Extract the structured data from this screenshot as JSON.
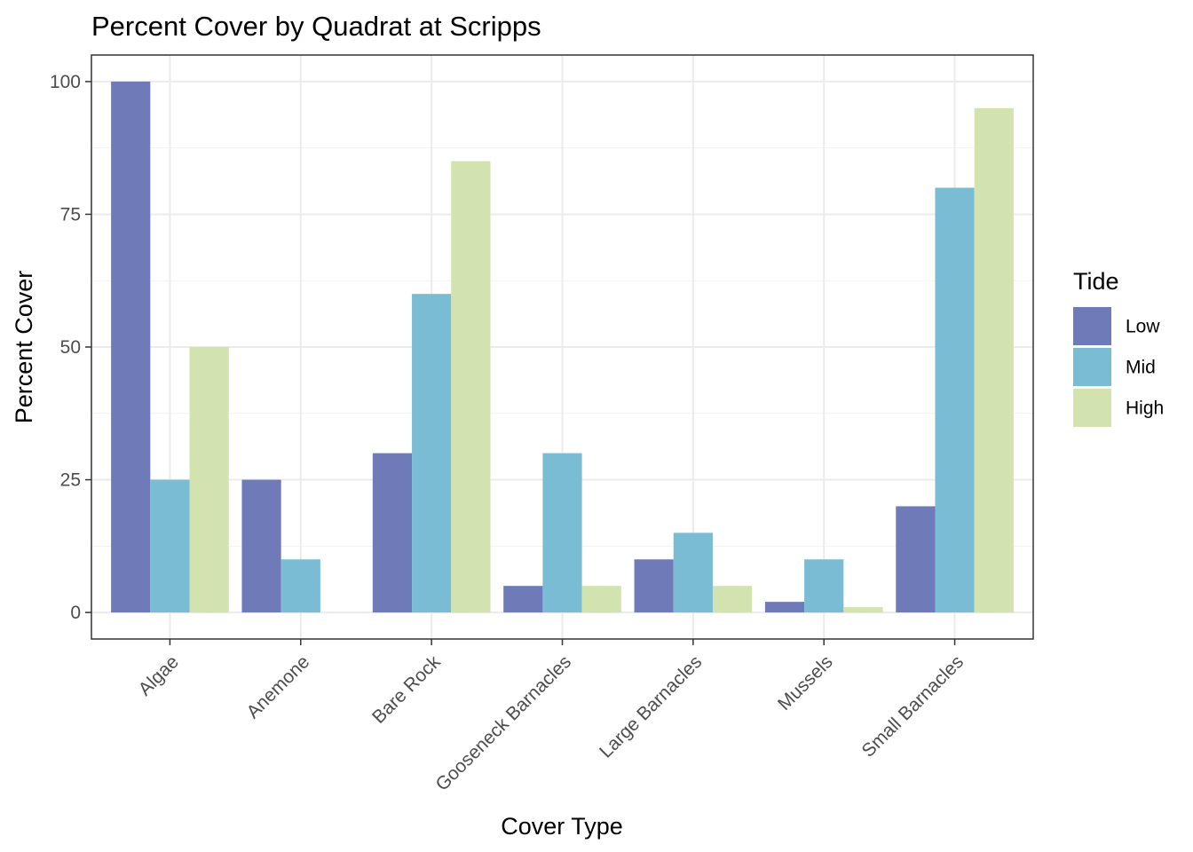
{
  "chart_data": {
    "type": "bar",
    "title": "Percent Cover by Quadrat at Scripps",
    "xlabel": "Cover Type",
    "ylabel": "Percent Cover",
    "ylim": [
      -5,
      105
    ],
    "yticks": [
      0,
      25,
      50,
      75,
      100
    ],
    "grid": true,
    "legend": {
      "title": "Tide",
      "position": "right"
    },
    "categories": [
      "Algae",
      "Anemone",
      "Bare Rock",
      "Gooseneck Barnacles",
      "Large Barnacles",
      "Mussels",
      "Small Barnacles"
    ],
    "series": [
      {
        "name": "Low",
        "color": "#6f7bb9",
        "values": [
          100,
          25,
          30,
          5,
          10,
          2,
          20
        ]
      },
      {
        "name": "Mid",
        "color": "#7bbcd5",
        "values": [
          25,
          10,
          60,
          30,
          15,
          10,
          80
        ]
      },
      {
        "name": "High",
        "color": "#d3e3b0",
        "values": [
          50,
          null,
          85,
          5,
          5,
          1,
          95
        ]
      }
    ]
  }
}
